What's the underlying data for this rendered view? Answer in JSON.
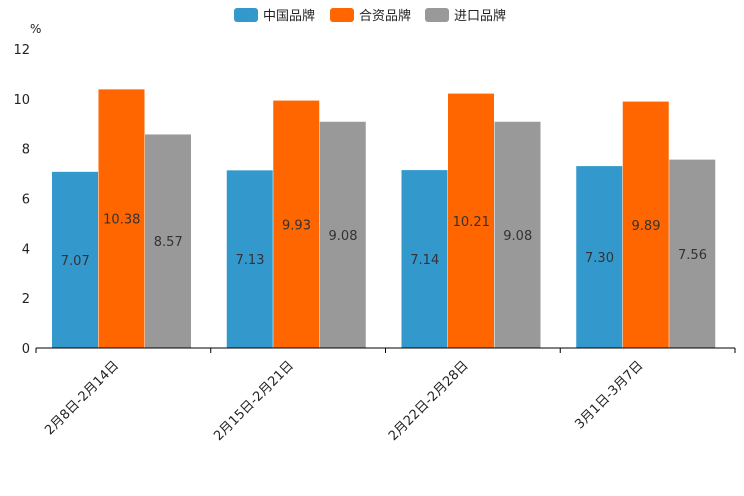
{
  "chart_data": {
    "type": "bar",
    "unit": "%",
    "categories": [
      "2月8日-2月14日",
      "2月15日-2月21日",
      "2月22日-2月28日",
      "3月1日-3月7日"
    ],
    "series": [
      {
        "name": "中国品牌",
        "color": "#3399cc",
        "values": [
          7.07,
          7.13,
          7.14,
          7.3
        ],
        "labels": [
          "7.07",
          "7.13",
          "7.14",
          "7.30"
        ]
      },
      {
        "name": "合资品牌",
        "color": "#ff6600",
        "values": [
          10.38,
          9.93,
          10.21,
          9.89
        ],
        "labels": [
          "10.38",
          "9.93",
          "10.21",
          "9.89"
        ]
      },
      {
        "name": "进口品牌",
        "color": "#999999",
        "values": [
          8.57,
          9.08,
          9.08,
          7.56
        ],
        "labels": [
          "8.57",
          "9.08",
          "9.08",
          "7.56"
        ]
      }
    ],
    "yticks": [
      "0",
      "2",
      "4",
      "6",
      "8",
      "10",
      "12"
    ],
    "ylim": [
      0,
      12
    ],
    "legend_position": "top-center"
  }
}
